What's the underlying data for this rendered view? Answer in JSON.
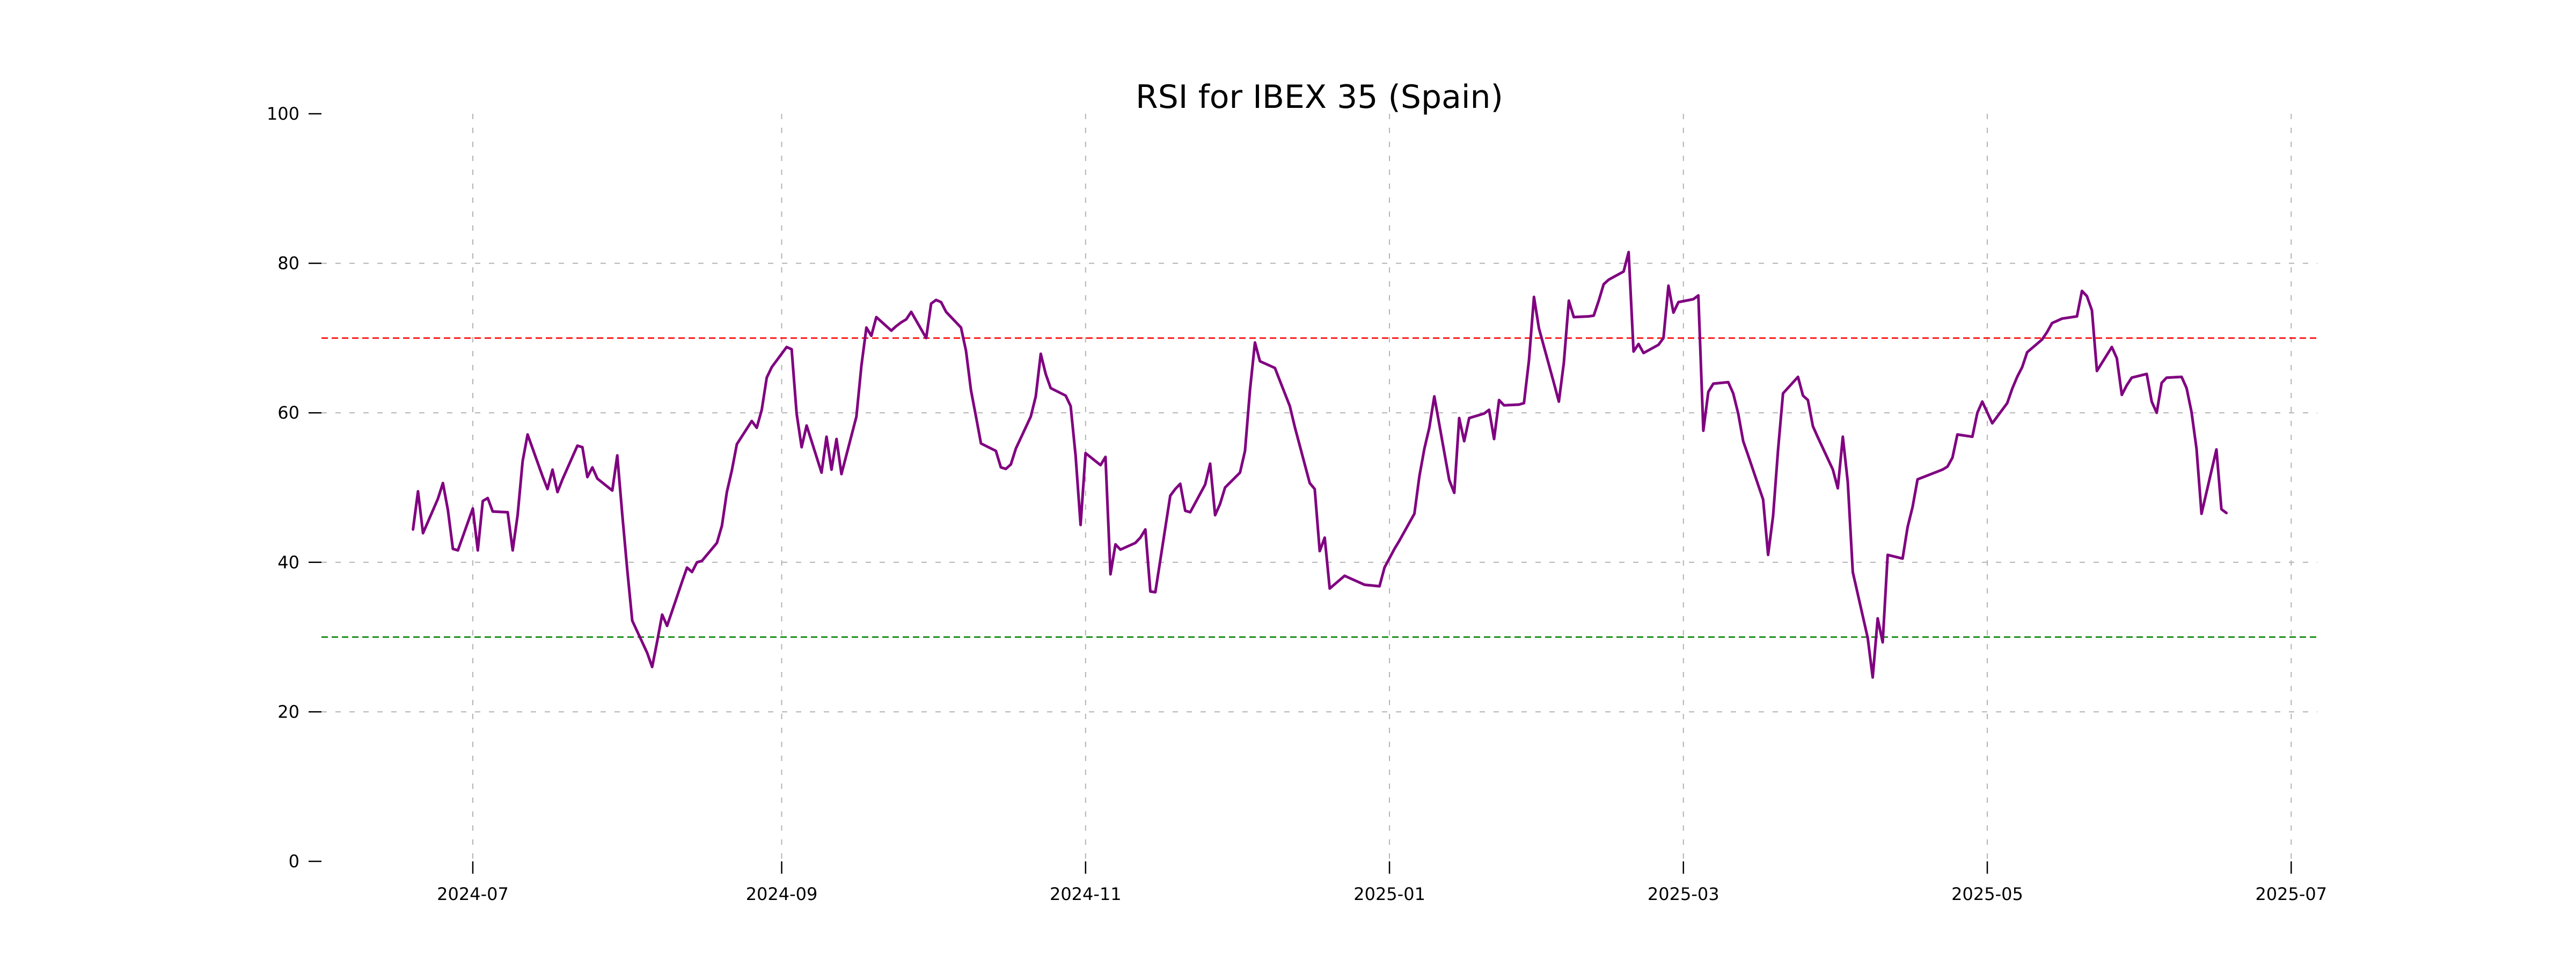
{
  "chart": {
    "title": "RSI for IBEX 35 (Spain)"
  },
  "chart_data": {
    "type": "line",
    "title": "RSI for IBEX 35 (Spain)",
    "xlabel": "",
    "ylabel": "",
    "ylim": [
      0,
      100
    ],
    "yticks": [
      0,
      20,
      40,
      60,
      80,
      100
    ],
    "xticks": [
      "2024-07",
      "2024-09",
      "2024-11",
      "2025-01",
      "2025-03",
      "2025-05",
      "2025-07"
    ],
    "grid": true,
    "legend_position": "none",
    "colors": {
      "line": "#800080",
      "overbought": "#ff0000",
      "oversold": "#008000",
      "grid": "#b3b3b3",
      "text": "#000000",
      "background": "#ffffff"
    },
    "reference_lines": [
      {
        "name": "overbought",
        "value": 70,
        "color": "#ff0000",
        "style": "dashed"
      },
      {
        "name": "oversold",
        "value": 30,
        "color": "#008000",
        "style": "dashed"
      }
    ],
    "series": [
      {
        "name": "RSI",
        "color": "#800080",
        "points": [
          [
            "2024-06-19",
            44.4
          ],
          [
            "2024-06-20",
            49.5
          ],
          [
            "2024-06-21",
            43.9
          ],
          [
            "2024-06-24",
            48.5
          ],
          [
            "2024-06-25",
            50.6
          ],
          [
            "2024-06-26",
            47.0
          ],
          [
            "2024-06-27",
            41.8
          ],
          [
            "2024-06-28",
            41.6
          ],
          [
            "2024-07-01",
            47.2
          ],
          [
            "2024-07-02",
            41.6
          ],
          [
            "2024-07-03",
            48.2
          ],
          [
            "2024-07-04",
            48.6
          ],
          [
            "2024-07-05",
            46.8
          ],
          [
            "2024-07-08",
            46.7
          ],
          [
            "2024-07-09",
            41.6
          ],
          [
            "2024-07-10",
            46.3
          ],
          [
            "2024-07-11",
            53.5
          ],
          [
            "2024-07-12",
            57.1
          ],
          [
            "2024-07-15",
            51.5
          ],
          [
            "2024-07-16",
            49.8
          ],
          [
            "2024-07-17",
            52.4
          ],
          [
            "2024-07-18",
            49.4
          ],
          [
            "2024-07-19",
            51.1
          ],
          [
            "2024-07-22",
            55.6
          ],
          [
            "2024-07-23",
            55.4
          ],
          [
            "2024-07-24",
            51.4
          ],
          [
            "2024-07-25",
            52.7
          ],
          [
            "2024-07-26",
            51.2
          ],
          [
            "2024-07-29",
            49.6
          ],
          [
            "2024-07-30",
            54.3
          ],
          [
            "2024-07-31",
            46.4
          ],
          [
            "2024-08-01",
            39.0
          ],
          [
            "2024-08-02",
            32.2
          ],
          [
            "2024-08-05",
            27.9
          ],
          [
            "2024-08-06",
            26.0
          ],
          [
            "2024-08-07",
            29.4
          ],
          [
            "2024-08-08",
            33.0
          ],
          [
            "2024-08-09",
            31.5
          ],
          [
            "2024-08-12",
            37.4
          ],
          [
            "2024-08-13",
            39.3
          ],
          [
            "2024-08-14",
            38.7
          ],
          [
            "2024-08-15",
            40.0
          ],
          [
            "2024-08-16",
            40.2
          ],
          [
            "2024-08-19",
            42.6
          ],
          [
            "2024-08-20",
            44.9
          ],
          [
            "2024-08-21",
            49.4
          ],
          [
            "2024-08-22",
            52.3
          ],
          [
            "2024-08-23",
            55.8
          ],
          [
            "2024-08-26",
            58.9
          ],
          [
            "2024-08-27",
            58.0
          ],
          [
            "2024-08-28",
            60.4
          ],
          [
            "2024-08-29",
            64.7
          ],
          [
            "2024-08-30",
            66.1
          ],
          [
            "2024-09-02",
            68.8
          ],
          [
            "2024-09-03",
            68.5
          ],
          [
            "2024-09-04",
            59.9
          ],
          [
            "2024-09-05",
            55.4
          ],
          [
            "2024-09-06",
            58.3
          ],
          [
            "2024-09-09",
            52.0
          ],
          [
            "2024-09-10",
            56.8
          ],
          [
            "2024-09-11",
            52.4
          ],
          [
            "2024-09-12",
            56.5
          ],
          [
            "2024-09-13",
            51.8
          ],
          [
            "2024-09-16",
            59.5
          ],
          [
            "2024-09-17",
            66.3
          ],
          [
            "2024-09-18",
            71.4
          ],
          [
            "2024-09-19",
            70.3
          ],
          [
            "2024-09-20",
            72.8
          ],
          [
            "2024-09-23",
            71.0
          ],
          [
            "2024-09-24",
            71.6
          ],
          [
            "2024-09-25",
            72.1
          ],
          [
            "2024-09-26",
            72.5
          ],
          [
            "2024-09-27",
            73.5
          ],
          [
            "2024-09-30",
            70.0
          ],
          [
            "2024-10-01",
            74.6
          ],
          [
            "2024-10-02",
            75.1
          ],
          [
            "2024-10-03",
            74.8
          ],
          [
            "2024-10-04",
            73.5
          ],
          [
            "2024-10-07",
            71.4
          ],
          [
            "2024-10-08",
            68.3
          ],
          [
            "2024-10-09",
            63.0
          ],
          [
            "2024-10-10",
            59.5
          ],
          [
            "2024-10-11",
            55.9
          ],
          [
            "2024-10-14",
            54.9
          ],
          [
            "2024-10-15",
            52.7
          ],
          [
            "2024-10-16",
            52.5
          ],
          [
            "2024-10-17",
            53.1
          ],
          [
            "2024-10-18",
            55.2
          ],
          [
            "2024-10-21",
            59.5
          ],
          [
            "2024-10-22",
            62.2
          ],
          [
            "2024-10-23",
            67.9
          ],
          [
            "2024-10-24",
            65.2
          ],
          [
            "2024-10-25",
            63.3
          ],
          [
            "2024-10-28",
            62.3
          ],
          [
            "2024-10-29",
            60.9
          ],
          [
            "2024-10-30",
            54.3
          ],
          [
            "2024-10-31",
            45.0
          ],
          [
            "2024-11-01",
            54.6
          ],
          [
            "2024-11-04",
            53.0
          ],
          [
            "2024-11-05",
            54.1
          ],
          [
            "2024-11-06",
            38.4
          ],
          [
            "2024-11-07",
            42.4
          ],
          [
            "2024-11-08",
            41.7
          ],
          [
            "2024-11-11",
            42.6
          ],
          [
            "2024-11-12",
            43.3
          ],
          [
            "2024-11-13",
            44.4
          ],
          [
            "2024-11-14",
            36.1
          ],
          [
            "2024-11-15",
            36.0
          ],
          [
            "2024-11-18",
            48.9
          ],
          [
            "2024-11-19",
            49.8
          ],
          [
            "2024-11-20",
            50.5
          ],
          [
            "2024-11-21",
            46.9
          ],
          [
            "2024-11-22",
            46.7
          ],
          [
            "2024-11-25",
            50.4
          ],
          [
            "2024-11-26",
            53.2
          ],
          [
            "2024-11-27",
            46.3
          ],
          [
            "2024-11-28",
            47.8
          ],
          [
            "2024-11-29",
            50.0
          ],
          [
            "2024-12-02",
            52.0
          ],
          [
            "2024-12-03",
            54.9
          ],
          [
            "2024-12-04",
            63.0
          ],
          [
            "2024-12-05",
            69.4
          ],
          [
            "2024-12-06",
            66.9
          ],
          [
            "2024-12-09",
            66.0
          ],
          [
            "2024-12-10",
            64.3
          ],
          [
            "2024-12-11",
            62.6
          ],
          [
            "2024-12-12",
            60.9
          ],
          [
            "2024-12-13",
            58.1
          ],
          [
            "2024-12-16",
            50.6
          ],
          [
            "2024-12-17",
            49.8
          ],
          [
            "2024-12-18",
            41.5
          ],
          [
            "2024-12-19",
            43.3
          ],
          [
            "2024-12-20",
            36.5
          ],
          [
            "2024-12-23",
            38.2
          ],
          [
            "2024-12-24",
            37.9
          ],
          [
            "2024-12-27",
            37.0
          ],
          [
            "2024-12-30",
            36.8
          ],
          [
            "2024-12-31",
            39.3
          ],
          [
            "2025-01-02",
            41.8
          ],
          [
            "2025-01-03",
            42.9
          ],
          [
            "2025-01-06",
            46.5
          ],
          [
            "2025-01-07",
            51.5
          ],
          [
            "2025-01-08",
            55.2
          ],
          [
            "2025-01-09",
            58.0
          ],
          [
            "2025-01-10",
            62.2
          ],
          [
            "2025-01-13",
            51.0
          ],
          [
            "2025-01-14",
            49.3
          ],
          [
            "2025-01-15",
            59.3
          ],
          [
            "2025-01-16",
            56.2
          ],
          [
            "2025-01-17",
            59.3
          ],
          [
            "2025-01-20",
            59.9
          ],
          [
            "2025-01-21",
            60.4
          ],
          [
            "2025-01-22",
            56.5
          ],
          [
            "2025-01-23",
            61.7
          ],
          [
            "2025-01-24",
            61.0
          ],
          [
            "2025-01-27",
            61.1
          ],
          [
            "2025-01-28",
            61.3
          ],
          [
            "2025-01-29",
            67.0
          ],
          [
            "2025-01-30",
            75.5
          ],
          [
            "2025-01-31",
            71.3
          ],
          [
            "2025-02-03",
            64.0
          ],
          [
            "2025-02-04",
            61.5
          ],
          [
            "2025-02-05",
            66.7
          ],
          [
            "2025-02-06",
            75.0
          ],
          [
            "2025-02-07",
            72.8
          ],
          [
            "2025-02-10",
            72.9
          ],
          [
            "2025-02-11",
            73.0
          ],
          [
            "2025-02-12",
            75.0
          ],
          [
            "2025-02-13",
            77.2
          ],
          [
            "2025-02-14",
            77.8
          ],
          [
            "2025-02-17",
            78.9
          ],
          [
            "2025-02-18",
            81.5
          ],
          [
            "2025-02-19",
            68.2
          ],
          [
            "2025-02-20",
            69.2
          ],
          [
            "2025-02-21",
            68.0
          ],
          [
            "2025-02-24",
            69.1
          ],
          [
            "2025-02-25",
            70.0
          ],
          [
            "2025-02-26",
            77.0
          ],
          [
            "2025-02-27",
            73.4
          ],
          [
            "2025-02-28",
            74.8
          ],
          [
            "2025-03-03",
            75.2
          ],
          [
            "2025-03-04",
            75.7
          ],
          [
            "2025-03-05",
            57.6
          ],
          [
            "2025-03-06",
            62.8
          ],
          [
            "2025-03-07",
            63.9
          ],
          [
            "2025-03-10",
            64.1
          ],
          [
            "2025-03-11",
            62.6
          ],
          [
            "2025-03-12",
            59.9
          ],
          [
            "2025-03-13",
            56.2
          ],
          [
            "2025-03-14",
            54.3
          ],
          [
            "2025-03-17",
            48.4
          ],
          [
            "2025-03-18",
            41.0
          ],
          [
            "2025-03-19",
            46.2
          ],
          [
            "2025-03-20",
            55.0
          ],
          [
            "2025-03-21",
            62.6
          ],
          [
            "2025-03-24",
            64.8
          ],
          [
            "2025-03-25",
            62.3
          ],
          [
            "2025-03-26",
            61.7
          ],
          [
            "2025-03-27",
            58.2
          ],
          [
            "2025-03-28",
            56.7
          ],
          [
            "2025-03-31",
            52.4
          ],
          [
            "2025-04-01",
            49.9
          ],
          [
            "2025-04-02",
            56.8
          ],
          [
            "2025-04-03",
            50.7
          ],
          [
            "2025-04-04",
            38.7
          ],
          [
            "2025-04-07",
            29.9
          ],
          [
            "2025-04-08",
            24.6
          ],
          [
            "2025-04-09",
            32.5
          ],
          [
            "2025-04-10",
            29.3
          ],
          [
            "2025-04-11",
            41.0
          ],
          [
            "2025-04-14",
            40.5
          ],
          [
            "2025-04-15",
            44.7
          ],
          [
            "2025-04-16",
            47.4
          ],
          [
            "2025-04-17",
            51.1
          ],
          [
            "2025-04-22",
            52.4
          ],
          [
            "2025-04-23",
            52.8
          ],
          [
            "2025-04-24",
            54.0
          ],
          [
            "2025-04-25",
            57.1
          ],
          [
            "2025-04-28",
            56.8
          ],
          [
            "2025-04-29",
            60.0
          ],
          [
            "2025-04-30",
            61.5
          ],
          [
            "2025-05-02",
            58.6
          ],
          [
            "2025-05-05",
            61.3
          ],
          [
            "2025-05-06",
            63.2
          ],
          [
            "2025-05-07",
            64.8
          ],
          [
            "2025-05-08",
            66.1
          ],
          [
            "2025-05-09",
            68.1
          ],
          [
            "2025-05-12",
            69.8
          ],
          [
            "2025-05-13",
            70.8
          ],
          [
            "2025-05-14",
            72.0
          ],
          [
            "2025-05-15",
            72.3
          ],
          [
            "2025-05-16",
            72.6
          ],
          [
            "2025-05-19",
            72.9
          ],
          [
            "2025-05-20",
            76.3
          ],
          [
            "2025-05-21",
            75.6
          ],
          [
            "2025-05-22",
            73.7
          ],
          [
            "2025-05-23",
            65.6
          ],
          [
            "2025-05-26",
            68.8
          ],
          [
            "2025-05-27",
            67.3
          ],
          [
            "2025-05-28",
            62.4
          ],
          [
            "2025-05-29",
            63.7
          ],
          [
            "2025-05-30",
            64.7
          ],
          [
            "2025-06-02",
            65.2
          ],
          [
            "2025-06-03",
            61.5
          ],
          [
            "2025-06-04",
            60.0
          ],
          [
            "2025-06-05",
            64.0
          ],
          [
            "2025-06-06",
            64.7
          ],
          [
            "2025-06-09",
            64.8
          ],
          [
            "2025-06-10",
            63.3
          ],
          [
            "2025-06-11",
            60.1
          ],
          [
            "2025-06-12",
            55.2
          ],
          [
            "2025-06-13",
            46.5
          ],
          [
            "2025-06-16",
            55.1
          ],
          [
            "2025-06-17",
            47.1
          ],
          [
            "2025-06-18",
            46.6
          ]
        ]
      }
    ]
  }
}
